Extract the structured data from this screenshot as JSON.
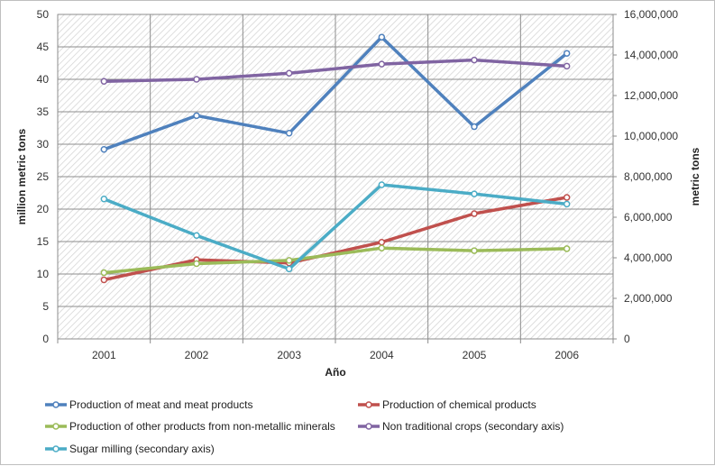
{
  "chart_data": {
    "type": "line",
    "title": "",
    "xlabel": "Año",
    "ylabel": "million metric tons",
    "y2label": "metric tons",
    "categories": [
      "2001",
      "2002",
      "2003",
      "2004",
      "2005",
      "2006"
    ],
    "ylim": [
      0,
      50
    ],
    "y_ticks": [
      "0",
      "5",
      "10",
      "15",
      "20",
      "25",
      "30",
      "35",
      "40",
      "45",
      "50"
    ],
    "y2lim": [
      0,
      16000000
    ],
    "y2_ticks": [
      "0",
      "2,000,000",
      "4,000,000",
      "6,000,000",
      "8,000,000",
      "10,000,000",
      "12,000,000",
      "14,000,000",
      "16,000,000"
    ],
    "grid": true,
    "legend_position": "bottom",
    "series": [
      {
        "name": "Production of meat and meat products",
        "axis": "left",
        "color": "#4f81bd",
        "values": [
          29.2,
          34.4,
          31.7,
          46.5,
          32.7,
          44.0
        ]
      },
      {
        "name": "Production of chemical products",
        "axis": "left",
        "color": "#c0504d",
        "values": [
          9.1,
          12.2,
          11.7,
          14.9,
          19.3,
          21.8
        ]
      },
      {
        "name": "Production of other products from non-metallic minerals",
        "axis": "left",
        "color": "#9bbb59",
        "values": [
          10.2,
          11.6,
          12.1,
          14.0,
          13.6,
          13.9
        ]
      },
      {
        "name": "Non traditional crops (secondary axis)",
        "axis": "right",
        "color": "#8064a2",
        "values": [
          12700000,
          12800000,
          13100000,
          13550000,
          13750000,
          13450000
        ]
      },
      {
        "name": "Sugar milling (secondary axis)",
        "axis": "right",
        "color": "#4bacc6",
        "values": [
          6900000,
          5100000,
          3450000,
          7600000,
          7150000,
          6650000
        ]
      }
    ]
  }
}
